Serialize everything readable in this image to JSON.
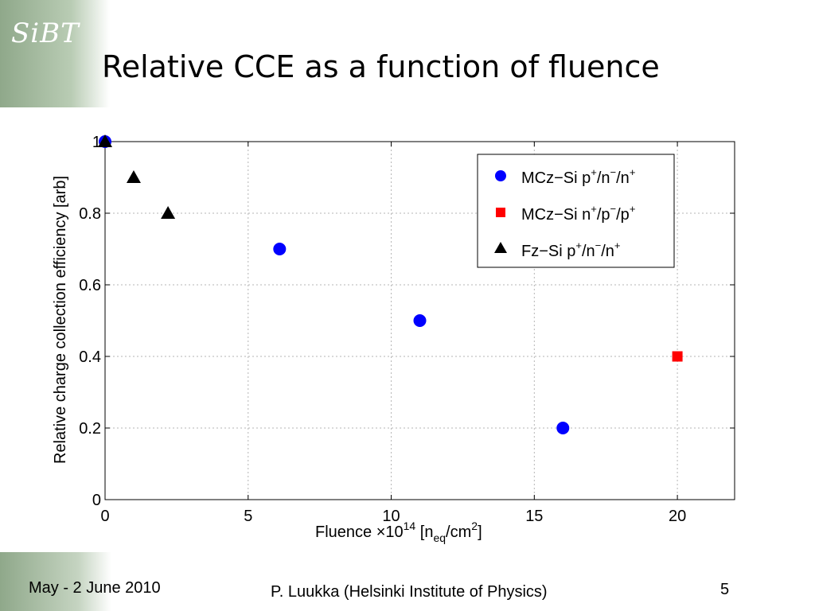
{
  "slide": {
    "logo": "SiBT",
    "title": "Relative CCE as a function of fluence",
    "footer_left": "May - 2 June 2010",
    "footer_center": "P. Luukka (Helsinki Institute of Physics)",
    "page_number": "5"
  },
  "chart_data": {
    "type": "scatter",
    "title": "",
    "xlabel": "Fluence ×10^14 [n_eq/cm^2]",
    "ylabel": "Relative charge collection efficiency [arb]",
    "xlim": [
      0,
      22
    ],
    "ylim": [
      0,
      1
    ],
    "xticks": [
      "0",
      "5",
      "10",
      "15",
      "20"
    ],
    "yticks": [
      "0",
      "0.2",
      "0.4",
      "0.6",
      "0.8",
      "1"
    ],
    "grid": true,
    "legend_position": "top-right",
    "series": [
      {
        "name": "MCz−Si p+/n−/n+",
        "marker": "circle",
        "color": "#0000ff",
        "points": [
          {
            "x": 0,
            "y": 1.0
          },
          {
            "x": 6.1,
            "y": 0.7
          },
          {
            "x": 11.0,
            "y": 0.5
          },
          {
            "x": 16.0,
            "y": 0.2
          }
        ]
      },
      {
        "name": "MCz−Si n+/p−/p+",
        "marker": "square",
        "color": "#ff0000",
        "points": [
          {
            "x": 20.0,
            "y": 0.4
          }
        ]
      },
      {
        "name": "Fz−Si p+/n−/n+",
        "marker": "triangle",
        "color": "#000000",
        "points": [
          {
            "x": 0,
            "y": 1.0
          },
          {
            "x": 1.0,
            "y": 0.9
          },
          {
            "x": 2.2,
            "y": 0.8
          }
        ]
      }
    ]
  }
}
